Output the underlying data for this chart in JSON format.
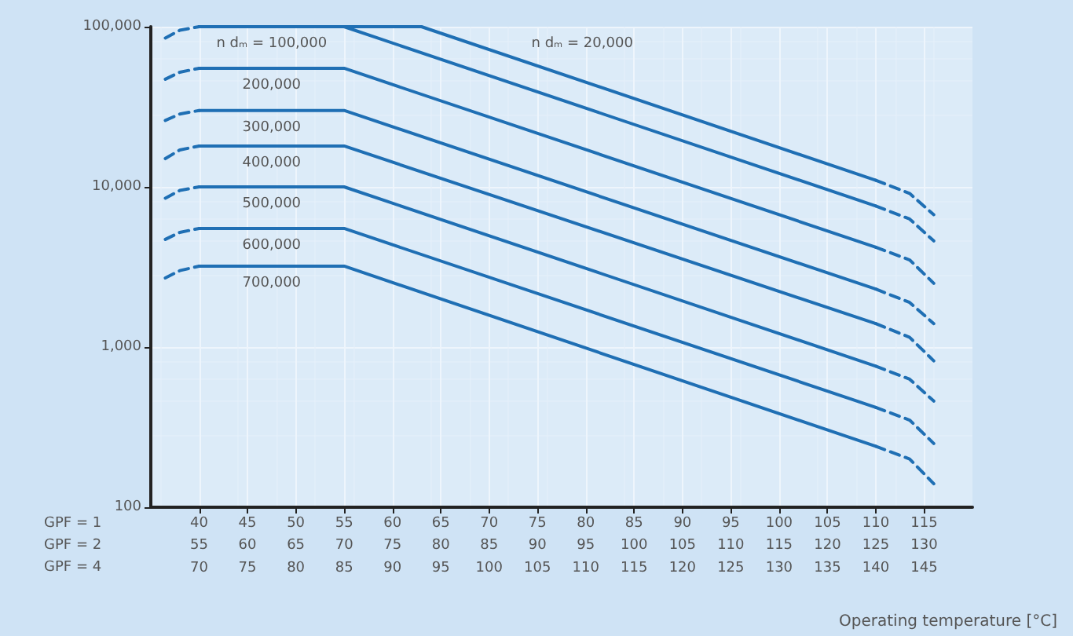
{
  "chart_data": {
    "type": "line",
    "xlabel": "Operating temperature [°C]",
    "log": "y",
    "grid": true,
    "legend": false,
    "marker": "none",
    "line_style": "solid",
    "xlim": [
      35,
      120
    ],
    "xticks": [
      40,
      45,
      50,
      55,
      60,
      65,
      70,
      75,
      80,
      85,
      90,
      95,
      100,
      105,
      110,
      115
    ],
    "x2lim": [
      50,
      135
    ],
    "x2ticks": [
      55,
      60,
      65,
      70,
      75,
      80,
      85,
      90,
      95,
      100,
      105,
      110,
      115,
      120,
      125,
      130
    ],
    "ylim": [
      100,
      100000
    ],
    "yticks": [
      {
        "value": 100,
        "label": "100"
      },
      {
        "value": 1000,
        "label": "1,000"
      },
      {
        "value": 10000,
        "label": "10,000"
      },
      {
        "value": 100000,
        "label": "100,000"
      }
    ],
    "series": [
      {
        "name": "n dₘ = 100,000",
        "color": "#1f6fb4",
        "x": [
          40,
          55,
          110
        ],
        "values": [
          100000,
          100000,
          7600
        ]
      },
      {
        "color": "#1f6fb4",
        "x": [
          36.5,
          38,
          40,
          75,
          110,
          113.5,
          116
        ],
        "values": [
          85000,
          95000,
          100000,
          null,
          7600,
          6300,
          4600
        ],
        "line_style": "dashed"
      },
      {
        "name": "n dₘ = 20,000",
        "color": "#1f6fb4",
        "x": [
          40,
          63,
          110
        ],
        "values": [
          100000,
          100000,
          11000
        ]
      },
      {
        "color": "#1f6fb4",
        "x": [
          110,
          113.5,
          116
        ],
        "values": [
          11000,
          9100,
          6700
        ],
        "line_style": "dashed"
      },
      {
        "name": "200,000",
        "color": "#1f6fb4",
        "x": [
          40,
          55,
          110
        ],
        "values": [
          55000,
          55000,
          4200
        ]
      },
      {
        "color": "#1f6fb4",
        "x": [
          36.5,
          38,
          40,
          75,
          110,
          113.5,
          116
        ],
        "values": [
          47000,
          52000,
          55000,
          null,
          4200,
          3500,
          2500
        ],
        "line_style": "dashed"
      },
      {
        "name": "300,000",
        "color": "#1f6fb4",
        "x": [
          40,
          55,
          110
        ],
        "values": [
          30000,
          30000,
          2300
        ]
      },
      {
        "color": "#1f6fb4",
        "x": [
          36.5,
          38,
          40,
          75,
          110,
          113.5,
          116
        ],
        "values": [
          26000,
          28500,
          30000,
          null,
          2300,
          1900,
          1400
        ],
        "line_style": "dashed"
      },
      {
        "name": "400,000",
        "color": "#1f6fb4",
        "x": [
          40,
          55,
          110
        ],
        "values": [
          18000,
          18000,
          1400
        ]
      },
      {
        "color": "#1f6fb4",
        "x": [
          36.5,
          38,
          40,
          75,
          110,
          113.5,
          116
        ],
        "values": [
          15000,
          17000,
          18000,
          null,
          1400,
          1150,
          820
        ],
        "line_style": "dashed"
      },
      {
        "name": "500,000",
        "color": "#1f6fb4",
        "x": [
          40,
          55,
          110
        ],
        "values": [
          10000,
          10000,
          760
        ]
      },
      {
        "color": "#1f6fb4",
        "x": [
          36.5,
          38,
          40,
          75,
          110,
          113.5,
          116
        ],
        "values": [
          8500,
          9500,
          10000,
          null,
          760,
          630,
          460
        ],
        "line_style": "dashed"
      },
      {
        "name": "600,000",
        "color": "#1f6fb4",
        "x": [
          40,
          55,
          110
        ],
        "values": [
          5500,
          5500,
          420
        ]
      },
      {
        "color": "#1f6fb4",
        "x": [
          36.5,
          38,
          40,
          75,
          110,
          113.5,
          116
        ],
        "values": [
          4700,
          5200,
          5500,
          null,
          420,
          350,
          250
        ],
        "line_style": "dashed"
      },
      {
        "name": "700,000",
        "color": "#1f6fb4",
        "x": [
          40,
          55,
          110
        ],
        "values": [
          3200,
          3200,
          240
        ]
      },
      {
        "color": "#1f6fb4",
        "x": [
          36.5,
          38,
          40,
          75,
          110,
          113.5,
          116
        ],
        "values": [
          2700,
          3000,
          3200,
          null,
          240,
          200,
          140
        ],
        "line_style": "dashed"
      }
    ],
    "annotations": [
      "GPF = 1",
      "GPF = 2",
      "GPF = 4",
      "70",
      "75",
      "80",
      "85",
      "90",
      "95",
      "100",
      "105",
      "110",
      "115",
      "120",
      "125",
      "130",
      "135",
      "140",
      "145"
    ]
  }
}
